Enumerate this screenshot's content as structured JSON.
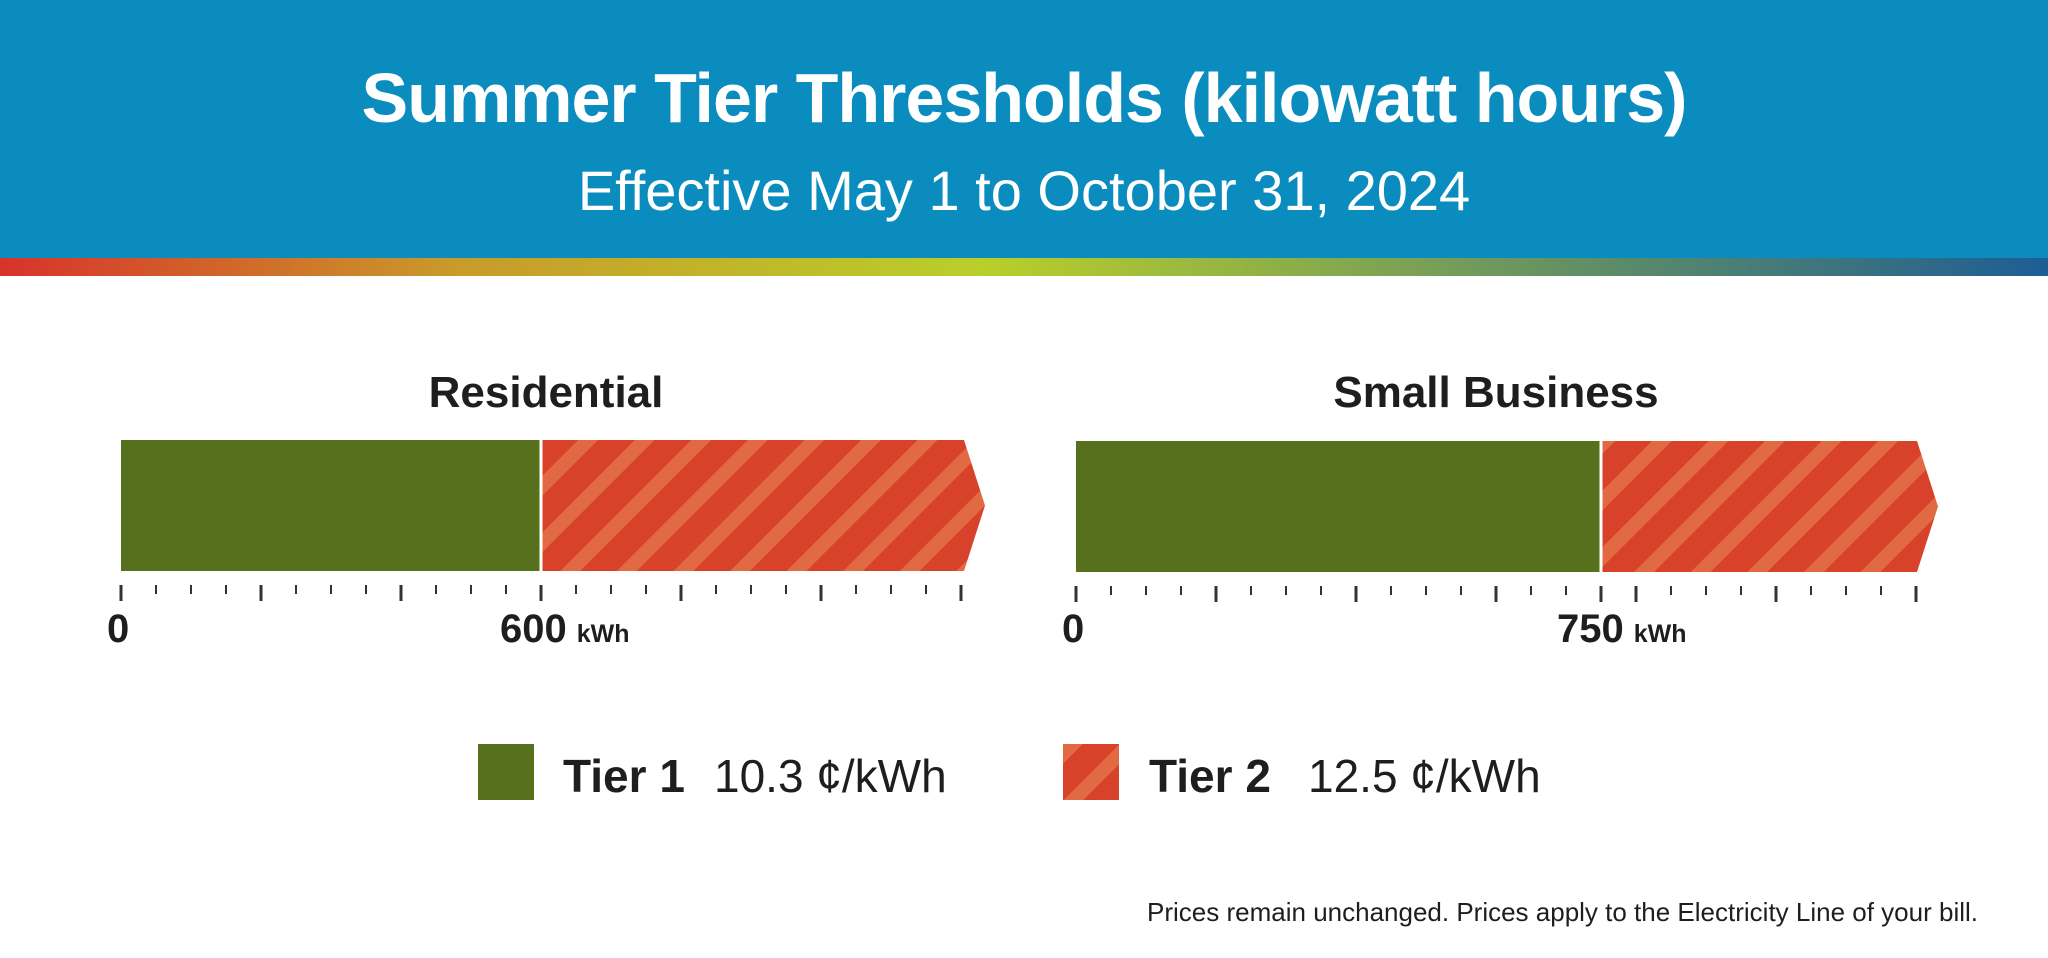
{
  "header": {
    "title": "Summer Tier Thresholds (kilowatt hours)",
    "subtitle": "Effective May 1 to October 31, 2024"
  },
  "colors": {
    "banner": "#0a8dbe",
    "tier1": "#56701e",
    "tier2": "#d8412a",
    "tier2_stripe": "#e26a43",
    "tick": "#333333",
    "gradient": [
      "#d9322b",
      "#c89a2a",
      "#b9cf2a",
      "#1d5d94"
    ]
  },
  "chart_data": [
    {
      "type": "bar",
      "orientation": "horizontal-stacked",
      "title": "Residential",
      "unit": "kWh",
      "threshold": 600,
      "threshold_label": "600",
      "origin_label": "0",
      "segments": [
        {
          "tier": "Tier 1",
          "from": 0,
          "to": 600
        },
        {
          "tier": "Tier 2",
          "from": 600,
          "to": null
        }
      ]
    },
    {
      "type": "bar",
      "orientation": "horizontal-stacked",
      "title": "Small Business",
      "unit": "kWh",
      "threshold": 750,
      "threshold_label": "750",
      "origin_label": "0",
      "segments": [
        {
          "tier": "Tier 1",
          "from": 0,
          "to": 750
        },
        {
          "tier": "Tier 2",
          "from": 750,
          "to": null
        }
      ]
    }
  ],
  "legend": [
    {
      "name": "Tier 1",
      "price": "10.3 ¢/kWh"
    },
    {
      "name": "Tier 2",
      "price": "12.5 ¢/kWh"
    }
  ],
  "footnote": "Prices remain unchanged. Prices apply to the Electricity Line of your bill."
}
